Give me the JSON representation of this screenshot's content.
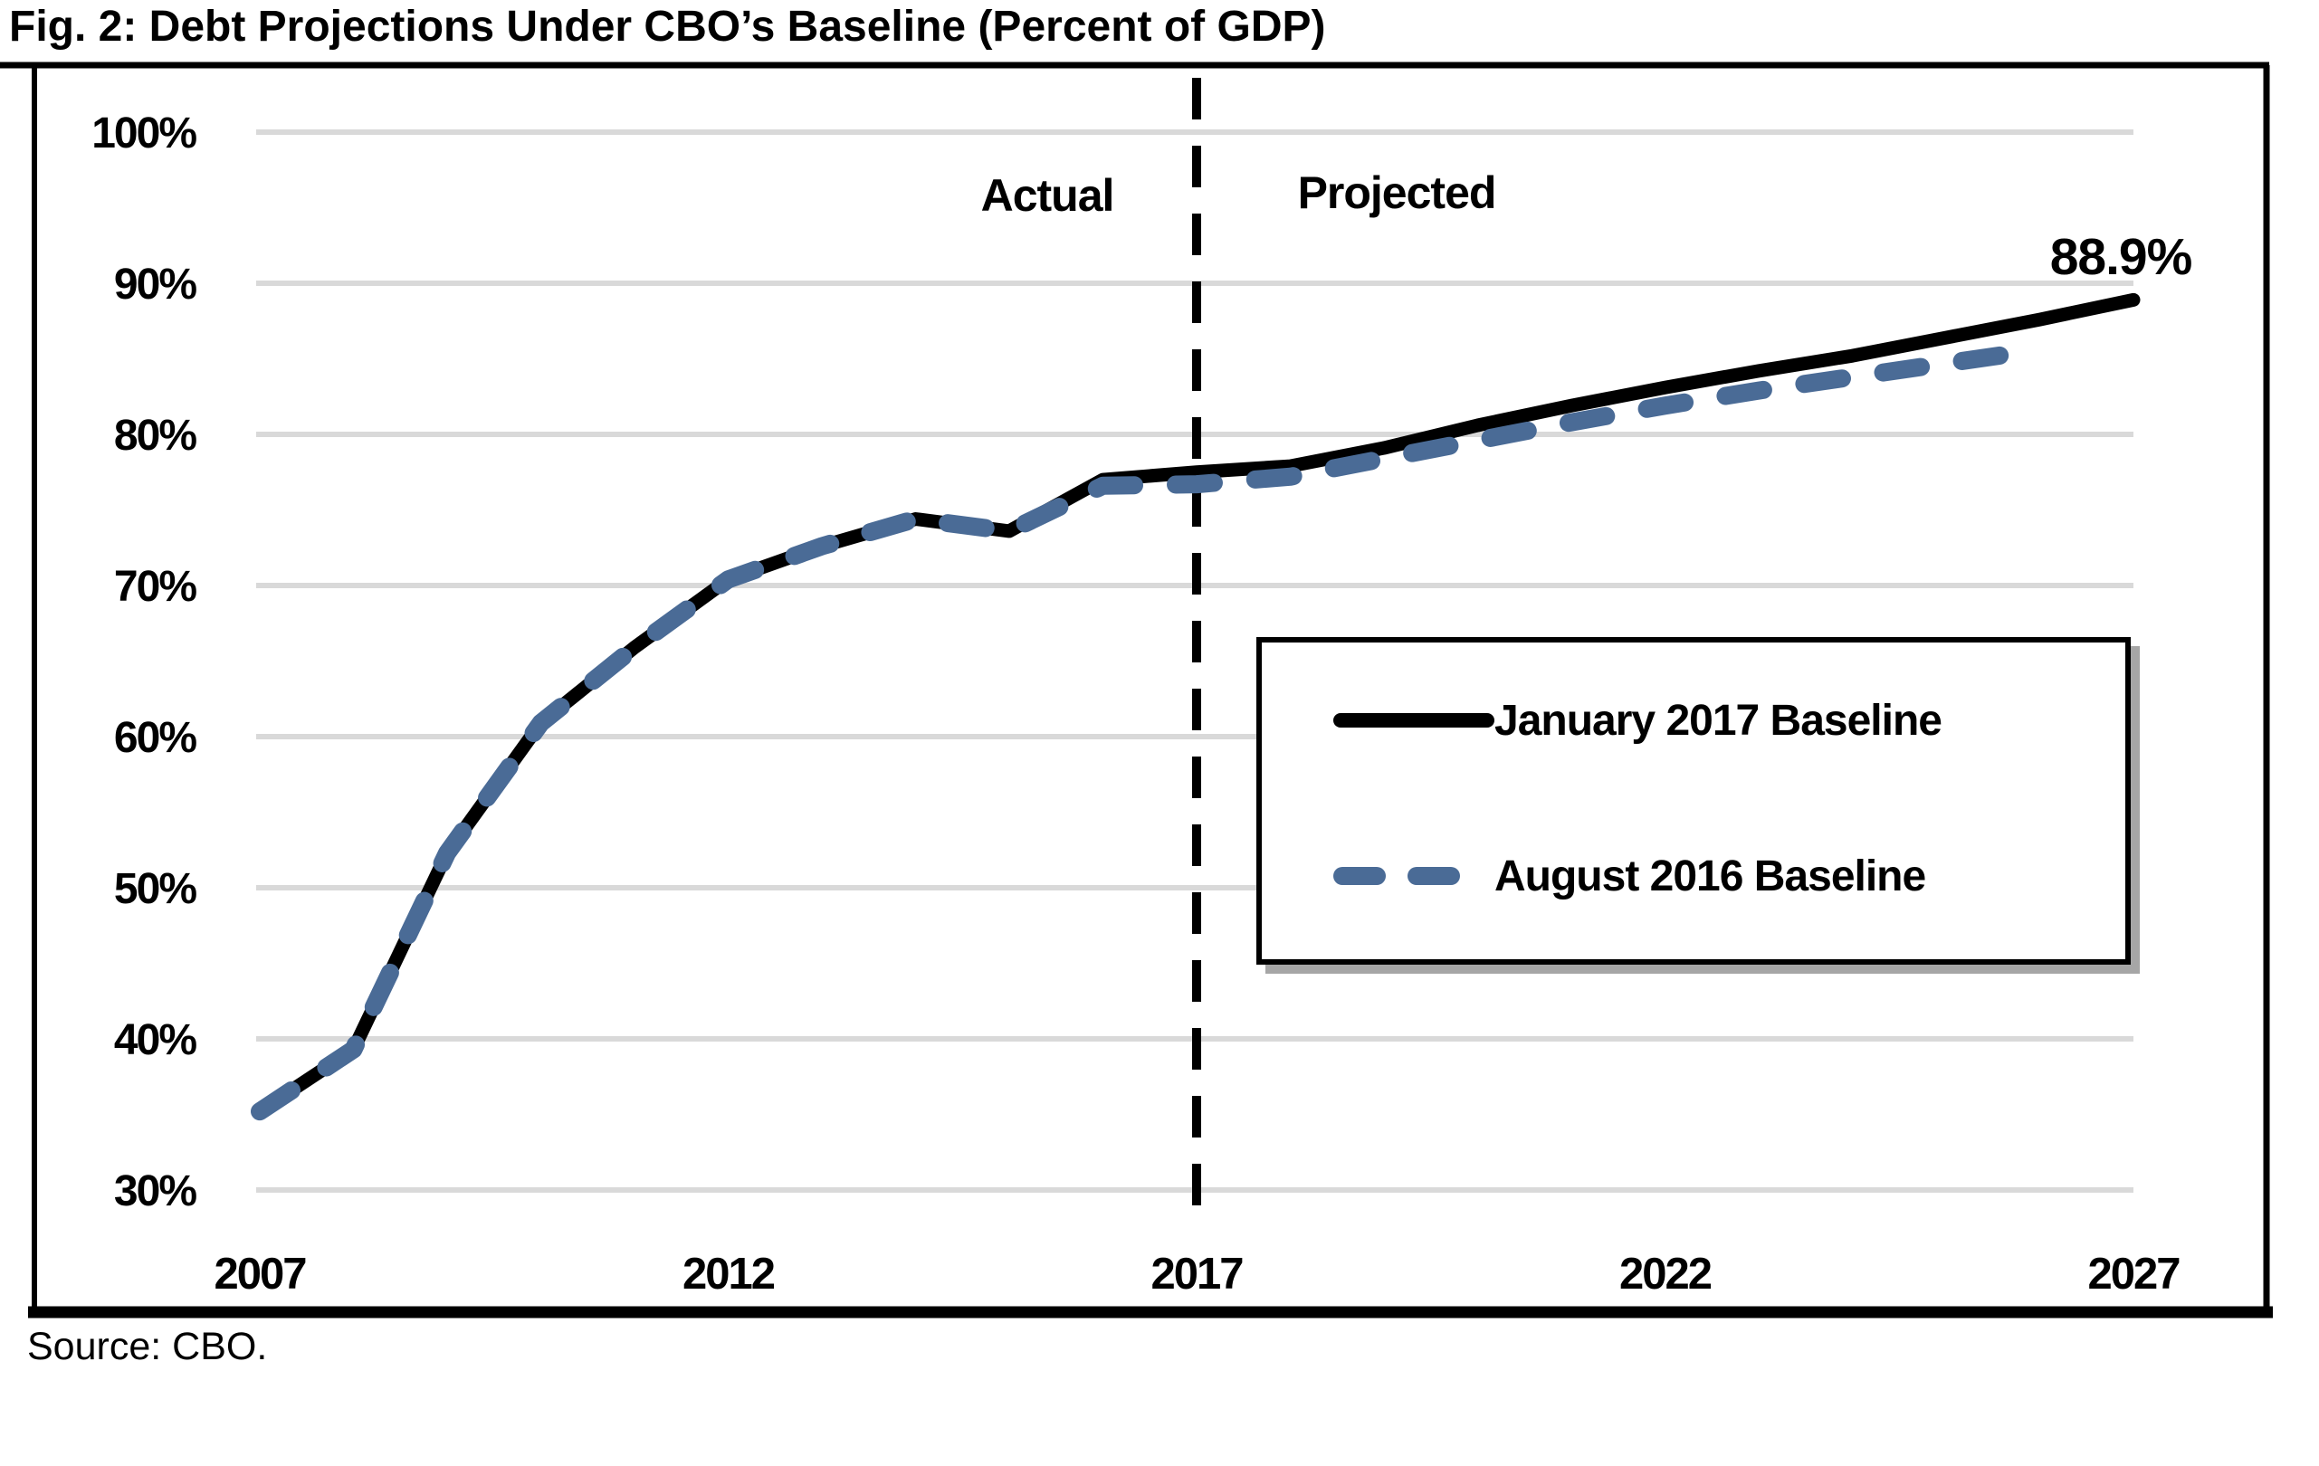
{
  "title": "Fig. 2: Debt Projections Under CBO’s Baseline (Percent of GDP)",
  "source": "Source: CBO.",
  "colors": {
    "january_2017": "#000000",
    "august_2016": "#4a6b96",
    "gridline": "#d9d9d9",
    "divider": "#000000",
    "frame": "#000000",
    "legend_shadow": "#a6a6a6"
  },
  "chart_data": {
    "type": "line",
    "title": "Fig. 2: Debt Projections Under CBO’s Baseline (Percent of GDP)",
    "xlabel": "",
    "ylabel": "Percent of GDP",
    "xlim": [
      2007,
      2027
    ],
    "ylim": [
      30,
      100
    ],
    "x_ticks": [
      2007,
      2012,
      2017,
      2022,
      2027
    ],
    "y_tick_step": 10,
    "y_tick_suffix": "%",
    "grid": true,
    "legend_position": "inside-right",
    "annotations": {
      "actual_region": "Actual",
      "projected_region": "Projected",
      "divider_year": 2017,
      "end_value_label": "88.9%"
    },
    "series": [
      {
        "name": "January 2017 Baseline",
        "line_style": "solid",
        "color": "#000000",
        "x": [
          2007,
          2008,
          2009,
          2010,
          2011,
          2012,
          2013,
          2014,
          2015,
          2016,
          2017,
          2018,
          2019,
          2020,
          2021,
          2022,
          2023,
          2024,
          2025,
          2026,
          2027
        ],
        "values": [
          35.2,
          39.3,
          52.3,
          60.9,
          65.9,
          70.4,
          72.6,
          74.4,
          73.6,
          77.0,
          77.5,
          77.9,
          79.1,
          80.6,
          81.9,
          83.1,
          84.2,
          85.2,
          86.4,
          87.6,
          88.9
        ]
      },
      {
        "name": "August 2016 Baseline",
        "line_style": "dashed",
        "color": "#4a6b96",
        "x": [
          2007,
          2008,
          2009,
          2010,
          2011,
          2012,
          2013,
          2014,
          2015,
          2016,
          2017,
          2018,
          2019,
          2020,
          2021,
          2022,
          2023,
          2024,
          2025,
          2026
        ],
        "values": [
          35.2,
          39.3,
          52.3,
          60.9,
          65.9,
          70.4,
          72.6,
          74.4,
          73.6,
          76.6,
          76.7,
          77.2,
          78.4,
          79.6,
          80.8,
          81.9,
          82.9,
          83.8,
          84.7,
          85.6
        ]
      }
    ]
  }
}
